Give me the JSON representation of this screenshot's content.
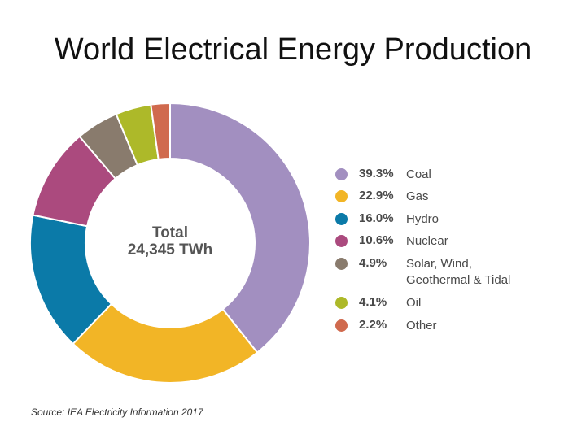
{
  "title": "World Electrical Energy Production",
  "source": "Source: IEA Electricity Information 2017",
  "chart_data": {
    "type": "pie",
    "donut": true,
    "center_label": "Total",
    "center_value": "24,345 TWh",
    "legend_position": "right",
    "slices": [
      {
        "label": "Coal",
        "percent": 39.3,
        "percent_label": "39.3%",
        "color": "#a28fc0"
      },
      {
        "label": "Gas",
        "percent": 22.9,
        "percent_label": "22.9%",
        "color": "#f2b526"
      },
      {
        "label": "Hydro",
        "percent": 16.0,
        "percent_label": "16.0%",
        "color": "#0b7aa8"
      },
      {
        "label": "Nuclear",
        "percent": 10.6,
        "percent_label": "10.6%",
        "color": "#ab4a7e"
      },
      {
        "label": "Solar, Wind, Geothermal & Tidal",
        "percent": 4.9,
        "percent_label": "4.9%",
        "color": "#897b6d"
      },
      {
        "label": "Oil",
        "percent": 4.1,
        "percent_label": "4.1%",
        "color": "#adb929"
      },
      {
        "label": "Other",
        "percent": 2.2,
        "percent_label": "2.2%",
        "color": "#d06a4e"
      }
    ]
  }
}
